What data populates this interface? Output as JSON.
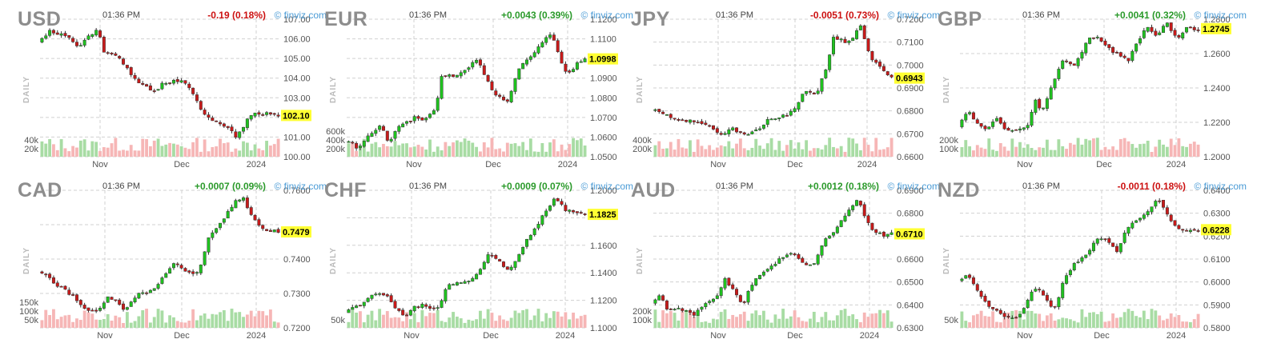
{
  "page": {
    "time_label": "01:36 PM",
    "brand": "© finviz.com",
    "side_label": "DAILY"
  },
  "colors": {
    "up": "#1fc21f",
    "down": "#c81a1a",
    "vol_up": "#a8dca4",
    "vol_down": "#f6b6b6",
    "grid": "#d0d0d0",
    "last_bg": "#ffff33",
    "change_up": "#2b9a2b",
    "change_down": "#cc1111"
  },
  "chart_data": [
    {
      "type": "candlestick",
      "symbol": "USD",
      "change": "-0.19 (0.18%)",
      "direction": "down",
      "last": 102.1,
      "last_label": "102.10",
      "ylim": [
        100.0,
        107.0
      ],
      "yticks": [
        100.0,
        101.0,
        102.0,
        103.0,
        104.0,
        105.0,
        106.0,
        107.0
      ],
      "ytick_labels": [
        "100.00",
        "101.00",
        "",
        "103.00",
        "104.00",
        "105.00",
        "106.00",
        "107.00"
      ],
      "xticks": [
        {
          "label": "Nov",
          "pos": 0.25
        },
        {
          "label": "Dec",
          "pos": 0.59
        },
        {
          "label": "2024",
          "pos": 0.9
        }
      ],
      "volume_labels": [
        "40k",
        "20k"
      ],
      "path": [
        [
          0,
          105.8
        ],
        [
          0.05,
          106.4
        ],
        [
          0.13,
          106.1
        ],
        [
          0.17,
          105.6
        ],
        [
          0.25,
          106.6
        ],
        [
          0.27,
          105.4
        ],
        [
          0.33,
          105.2
        ],
        [
          0.41,
          103.8
        ],
        [
          0.48,
          103.3
        ],
        [
          0.53,
          103.8
        ],
        [
          0.6,
          103.9
        ],
        [
          0.63,
          103.5
        ],
        [
          0.69,
          102.1
        ],
        [
          0.74,
          101.8
        ],
        [
          0.8,
          101.5
        ],
        [
          0.82,
          100.9
        ],
        [
          0.84,
          101.3
        ],
        [
          0.89,
          102.2
        ],
        [
          0.95,
          102.2
        ],
        [
          1,
          102.1
        ]
      ]
    },
    {
      "type": "candlestick",
      "symbol": "EUR",
      "change": "+0.0043 (0.39%)",
      "direction": "up",
      "last": 1.0998,
      "last_label": "1.0998",
      "ylim": [
        1.05,
        1.12
      ],
      "yticks": [
        1.05,
        1.06,
        1.07,
        1.08,
        1.09,
        1.1,
        1.11,
        1.12
      ],
      "ytick_labels": [
        "1.0500",
        "1.0600",
        "1.0700",
        "1.0800",
        "1.0900",
        "",
        "1.1100",
        "1.1200"
      ],
      "xticks": [
        {
          "label": "Nov",
          "pos": 0.28
        },
        {
          "label": "Dec",
          "pos": 0.61
        },
        {
          "label": "2024",
          "pos": 0.92
        }
      ],
      "volume_labels": [
        "600k",
        "400k",
        "200k"
      ],
      "path": [
        [
          0,
          1.0575
        ],
        [
          0.03,
          1.0585
        ],
        [
          0.05,
          1.0545
        ],
        [
          0.1,
          1.061
        ],
        [
          0.15,
          1.066
        ],
        [
          0.18,
          1.057
        ],
        [
          0.22,
          1.065
        ],
        [
          0.3,
          1.0705
        ],
        [
          0.33,
          1.0685
        ],
        [
          0.38,
          1.0745
        ],
        [
          0.4,
          1.0905
        ],
        [
          0.48,
          1.092
        ],
        [
          0.55,
          1.0995
        ],
        [
          0.59,
          1.0895
        ],
        [
          0.63,
          1.081
        ],
        [
          0.68,
          1.0775
        ],
        [
          0.72,
          1.0935
        ],
        [
          0.78,
          1.1025
        ],
        [
          0.86,
          1.113
        ],
        [
          0.9,
          1.098
        ],
        [
          0.93,
          1.0915
        ],
        [
          0.96,
          1.0965
        ],
        [
          1,
          1.0998
        ]
      ]
    },
    {
      "type": "candlestick",
      "symbol": "JPY",
      "change": "-0.0051 (0.73%)",
      "direction": "down",
      "last": 0.6943,
      "last_label": "0.6943",
      "ylim": [
        0.66,
        0.72
      ],
      "yticks": [
        0.66,
        0.67,
        0.68,
        0.69,
        0.7,
        0.71,
        0.72
      ],
      "ytick_labels": [
        "0.6600",
        "0.6700",
        "0.6800",
        "0.6900",
        "0.7000",
        "0.7100",
        "0.7200"
      ],
      "xticks": [
        {
          "label": "Nov",
          "pos": 0.27
        },
        {
          "label": "Dec",
          "pos": 0.59
        },
        {
          "label": "2024",
          "pos": 0.89
        }
      ],
      "volume_labels": [
        "400k",
        "200k"
      ],
      "path": [
        [
          0,
          0.6805
        ],
        [
          0.05,
          0.6785
        ],
        [
          0.1,
          0.6765
        ],
        [
          0.18,
          0.6755
        ],
        [
          0.24,
          0.6745
        ],
        [
          0.29,
          0.6695
        ],
        [
          0.33,
          0.6725
        ],
        [
          0.4,
          0.6695
        ],
        [
          0.44,
          0.6715
        ],
        [
          0.48,
          0.6755
        ],
        [
          0.54,
          0.6775
        ],
        [
          0.6,
          0.6805
        ],
        [
          0.64,
          0.6895
        ],
        [
          0.69,
          0.6875
        ],
        [
          0.73,
          0.6995
        ],
        [
          0.76,
          0.7125
        ],
        [
          0.81,
          0.7095
        ],
        [
          0.84,
          0.7125
        ],
        [
          0.87,
          0.7175
        ],
        [
          0.91,
          0.7035
        ],
        [
          0.96,
          0.6985
        ],
        [
          1,
          0.6943
        ]
      ]
    },
    {
      "type": "candlestick",
      "symbol": "GBP",
      "change": "+0.0041 (0.32%)",
      "direction": "up",
      "last": 1.2745,
      "last_label": "1.2745",
      "ylim": [
        1.2,
        1.28
      ],
      "yticks": [
        1.2,
        1.22,
        1.24,
        1.26,
        1.28
      ],
      "ytick_labels": [
        "1.2000",
        "1.2200",
        "1.2400",
        "1.2600",
        "1.2800"
      ],
      "xticks": [
        {
          "label": "Nov",
          "pos": 0.27
        },
        {
          "label": "Dec",
          "pos": 0.6
        },
        {
          "label": "2024",
          "pos": 0.9
        }
      ],
      "volume_labels": [
        "200k",
        "100k"
      ],
      "path": [
        [
          0,
          1.2175
        ],
        [
          0.04,
          1.2265
        ],
        [
          0.07,
          1.2205
        ],
        [
          0.12,
          1.2165
        ],
        [
          0.16,
          1.2225
        ],
        [
          0.2,
          1.2145
        ],
        [
          0.26,
          1.2165
        ],
        [
          0.29,
          1.2185
        ],
        [
          0.32,
          1.2335
        ],
        [
          0.35,
          1.2265
        ],
        [
          0.39,
          1.2415
        ],
        [
          0.44,
          1.2565
        ],
        [
          0.49,
          1.2535
        ],
        [
          0.52,
          1.2615
        ],
        [
          0.55,
          1.2705
        ],
        [
          0.6,
          1.2675
        ],
        [
          0.63,
          1.2625
        ],
        [
          0.67,
          1.2595
        ],
        [
          0.71,
          1.2565
        ],
        [
          0.74,
          1.2645
        ],
        [
          0.78,
          1.2755
        ],
        [
          0.83,
          1.2705
        ],
        [
          0.87,
          1.2785
        ],
        [
          0.91,
          1.2685
        ],
        [
          0.95,
          1.2745
        ],
        [
          1,
          1.2745
        ]
      ]
    },
    {
      "type": "candlestick",
      "symbol": "CAD",
      "change": "+0.0007 (0.09%)",
      "direction": "up",
      "last": 0.7479,
      "last_label": "0.7479",
      "ylim": [
        0.72,
        0.76
      ],
      "yticks": [
        0.72,
        0.73,
        0.74,
        0.75,
        0.76
      ],
      "ytick_labels": [
        "0.7200",
        "0.7300",
        "0.7400",
        "",
        "0.7600"
      ],
      "xticks": [
        {
          "label": "Nov",
          "pos": 0.27
        },
        {
          "label": "Dec",
          "pos": 0.59
        },
        {
          "label": "2024",
          "pos": 0.9
        }
      ],
      "volume_labels": [
        "150k",
        "100k",
        "50k"
      ],
      "path": [
        [
          0,
          0.7365
        ],
        [
          0.04,
          0.7355
        ],
        [
          0.07,
          0.7325
        ],
        [
          0.12,
          0.7305
        ],
        [
          0.17,
          0.7275
        ],
        [
          0.22,
          0.7245
        ],
        [
          0.25,
          0.7245
        ],
        [
          0.29,
          0.7295
        ],
        [
          0.33,
          0.7275
        ],
        [
          0.36,
          0.7255
        ],
        [
          0.41,
          0.7295
        ],
        [
          0.47,
          0.7305
        ],
        [
          0.52,
          0.7345
        ],
        [
          0.57,
          0.7395
        ],
        [
          0.62,
          0.7355
        ],
        [
          0.67,
          0.7365
        ],
        [
          0.71,
          0.7465
        ],
        [
          0.77,
          0.7515
        ],
        [
          0.82,
          0.7565
        ],
        [
          0.86,
          0.7575
        ],
        [
          0.88,
          0.7535
        ],
        [
          0.91,
          0.7505
        ],
        [
          0.95,
          0.7485
        ],
        [
          1,
          0.7479
        ]
      ]
    },
    {
      "type": "candlestick",
      "symbol": "CHF",
      "change": "+0.0009 (0.07%)",
      "direction": "up",
      "last": 1.1825,
      "last_label": "1.1825",
      "ylim": [
        1.1,
        1.2
      ],
      "yticks": [
        1.1,
        1.12,
        1.14,
        1.16,
        1.18,
        1.2
      ],
      "ytick_labels": [
        "1.1000",
        "1.1200",
        "1.1400",
        "1.1600",
        "",
        "1.2000"
      ],
      "xticks": [
        {
          "label": "Nov",
          "pos": 0.27
        },
        {
          "label": "Dec",
          "pos": 0.6
        },
        {
          "label": "2024",
          "pos": 0.91
        }
      ],
      "volume_labels": [
        "50k"
      ],
      "path": [
        [
          0,
          1.1105
        ],
        [
          0.04,
          1.1145
        ],
        [
          0.08,
          1.1185
        ],
        [
          0.13,
          1.1255
        ],
        [
          0.17,
          1.1245
        ],
        [
          0.21,
          1.1155
        ],
        [
          0.25,
          1.1085
        ],
        [
          0.28,
          1.1145
        ],
        [
          0.32,
          1.1165
        ],
        [
          0.38,
          1.1125
        ],
        [
          0.43,
          1.1305
        ],
        [
          0.5,
          1.1335
        ],
        [
          0.55,
          1.1385
        ],
        [
          0.6,
          1.1535
        ],
        [
          0.64,
          1.1505
        ],
        [
          0.67,
          1.1405
        ],
        [
          0.72,
          1.1505
        ],
        [
          0.76,
          1.1645
        ],
        [
          0.8,
          1.1735
        ],
        [
          0.84,
          1.1865
        ],
        [
          0.88,
          1.1945
        ],
        [
          0.92,
          1.1855
        ],
        [
          0.96,
          1.1835
        ],
        [
          1,
          1.1825
        ]
      ]
    },
    {
      "type": "candlestick",
      "symbol": "AUD",
      "change": "+0.0012 (0.18%)",
      "direction": "up",
      "last": 0.671,
      "last_label": "0.6710",
      "ylim": [
        0.63,
        0.69
      ],
      "yticks": [
        0.63,
        0.64,
        0.65,
        0.66,
        0.67,
        0.68,
        0.69
      ],
      "ytick_labels": [
        "0.6300",
        "0.6400",
        "0.6500",
        "0.6600",
        "",
        "0.6800",
        "0.6900"
      ],
      "xticks": [
        {
          "label": "Nov",
          "pos": 0.27
        },
        {
          "label": "Dec",
          "pos": 0.59
        },
        {
          "label": "2024",
          "pos": 0.9
        }
      ],
      "volume_labels": [
        "200k",
        "100k"
      ],
      "path": [
        [
          0,
          0.6405
        ],
        [
          0.04,
          0.6445
        ],
        [
          0.07,
          0.6375
        ],
        [
          0.12,
          0.6385
        ],
        [
          0.17,
          0.6355
        ],
        [
          0.23,
          0.6405
        ],
        [
          0.27,
          0.6435
        ],
        [
          0.31,
          0.6515
        ],
        [
          0.35,
          0.6445
        ],
        [
          0.38,
          0.6395
        ],
        [
          0.42,
          0.6495
        ],
        [
          0.46,
          0.6535
        ],
        [
          0.5,
          0.6565
        ],
        [
          0.55,
          0.6615
        ],
        [
          0.6,
          0.6625
        ],
        [
          0.64,
          0.6575
        ],
        [
          0.68,
          0.6575
        ],
        [
          0.72,
          0.6685
        ],
        [
          0.77,
          0.6735
        ],
        [
          0.81,
          0.6795
        ],
        [
          0.86,
          0.6865
        ],
        [
          0.89,
          0.6775
        ],
        [
          0.93,
          0.6715
        ],
        [
          0.96,
          0.6705
        ],
        [
          1,
          0.671
        ]
      ]
    },
    {
      "type": "candlestick",
      "symbol": "NZD",
      "change": "-0.0011 (0.18%)",
      "direction": "down",
      "last": 0.6228,
      "last_label": "0.6228",
      "ylim": [
        0.58,
        0.64
      ],
      "yticks": [
        0.58,
        0.59,
        0.6,
        0.61,
        0.62,
        0.63,
        0.64
      ],
      "ytick_labels": [
        "0.5800",
        "0.5900",
        "0.6000",
        "0.6100",
        "0.6200",
        "0.6300",
        "0.6400"
      ],
      "xticks": [
        {
          "label": "Nov",
          "pos": 0.27
        },
        {
          "label": "Dec",
          "pos": 0.59
        },
        {
          "label": "2024",
          "pos": 0.9
        }
      ],
      "volume_labels": [
        "50k"
      ],
      "path": [
        [
          0,
          0.6005
        ],
        [
          0.04,
          0.6035
        ],
        [
          0.07,
          0.5975
        ],
        [
          0.12,
          0.5905
        ],
        [
          0.17,
          0.5865
        ],
        [
          0.22,
          0.5845
        ],
        [
          0.26,
          0.5855
        ],
        [
          0.29,
          0.5925
        ],
        [
          0.33,
          0.5985
        ],
        [
          0.36,
          0.5935
        ],
        [
          0.4,
          0.5875
        ],
        [
          0.44,
          0.6005
        ],
        [
          0.49,
          0.6085
        ],
        [
          0.54,
          0.6125
        ],
        [
          0.58,
          0.6195
        ],
        [
          0.62,
          0.6185
        ],
        [
          0.66,
          0.6135
        ],
        [
          0.7,
          0.6225
        ],
        [
          0.75,
          0.6275
        ],
        [
          0.79,
          0.6305
        ],
        [
          0.83,
          0.6365
        ],
        [
          0.86,
          0.6315
        ],
        [
          0.9,
          0.6245
        ],
        [
          0.94,
          0.6225
        ],
        [
          1,
          0.6228
        ]
      ]
    }
  ]
}
